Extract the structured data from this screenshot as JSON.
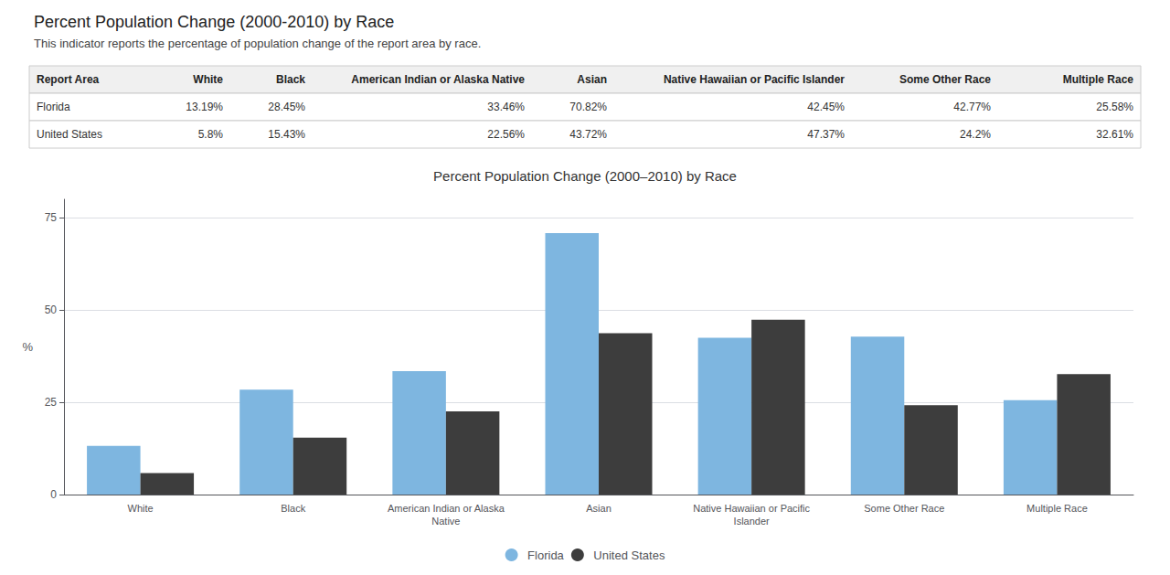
{
  "title": "Percent Population Change (2000-2010) by Race",
  "subtitle": "This indicator reports the percentage of population change of the report area by race.",
  "table": {
    "headers": [
      "Report Area",
      "White",
      "Black",
      "American Indian or Alaska Native",
      "Asian",
      "Native Hawaiian or Pacific Islander",
      "Some Other Race",
      "Multiple Race"
    ],
    "rows": [
      [
        "Florida",
        "13.19%",
        "28.45%",
        "33.46%",
        "70.82%",
        "42.45%",
        "42.77%",
        "25.58%"
      ],
      [
        "United States",
        "5.8%",
        "15.43%",
        "22.56%",
        "43.72%",
        "47.37%",
        "24.2%",
        "32.61%"
      ]
    ]
  },
  "chart_data": {
    "type": "bar",
    "title": "Percent Population Change (2000–2010) by Race",
    "categories": [
      "White",
      "Black",
      "American Indian or Alaska\nNative",
      "Asian",
      "Native Hawaiian or Pacific\nIslander",
      "Some Other Race",
      "Multiple Race"
    ],
    "series": [
      {
        "name": "Florida",
        "color": "#7EB6E0",
        "values": [
          13.19,
          28.45,
          33.46,
          70.82,
          42.45,
          42.77,
          25.58
        ]
      },
      {
        "name": "United States",
        "color": "#3D3D3D",
        "values": [
          5.8,
          15.43,
          22.56,
          43.72,
          47.37,
          24.2,
          32.61
        ]
      }
    ],
    "ylabel": "%",
    "ylim": [
      0,
      80
    ],
    "yticks": [
      0,
      25,
      50,
      75
    ],
    "grid": true,
    "legend": "bottom"
  }
}
